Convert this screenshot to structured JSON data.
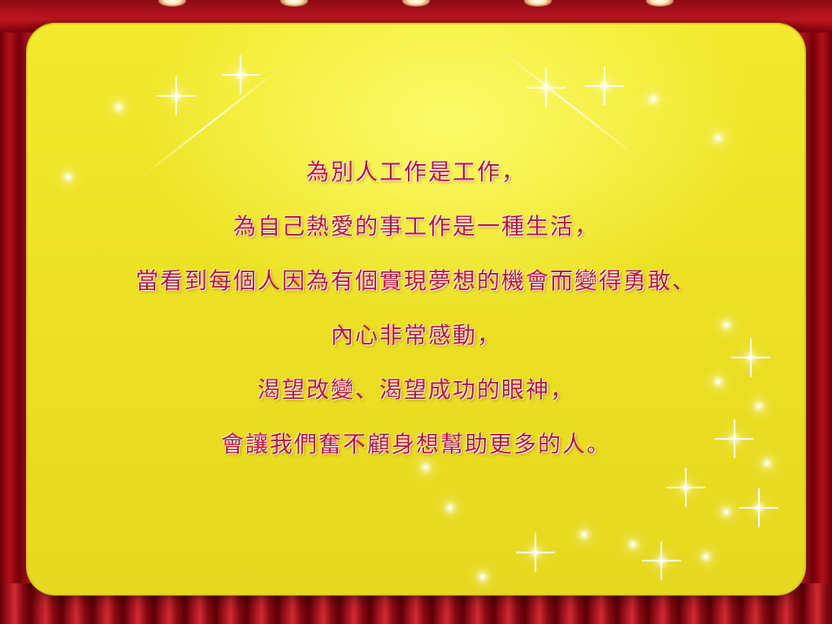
{
  "slide": {
    "lines": [
      "為別人工作是工作，",
      "為自己熱愛的事工作是一種生活，",
      "當看到每個人因為有個實現夢想的機會而變得勇敢、",
      "內心非常感動，",
      "渴望改變、渴望成功的眼神，",
      "會讓我們奮不顧身想幫助更多的人。"
    ]
  },
  "colors": {
    "text": "#b0123f",
    "panel": "#ece124",
    "curtain": "#b3101c"
  }
}
